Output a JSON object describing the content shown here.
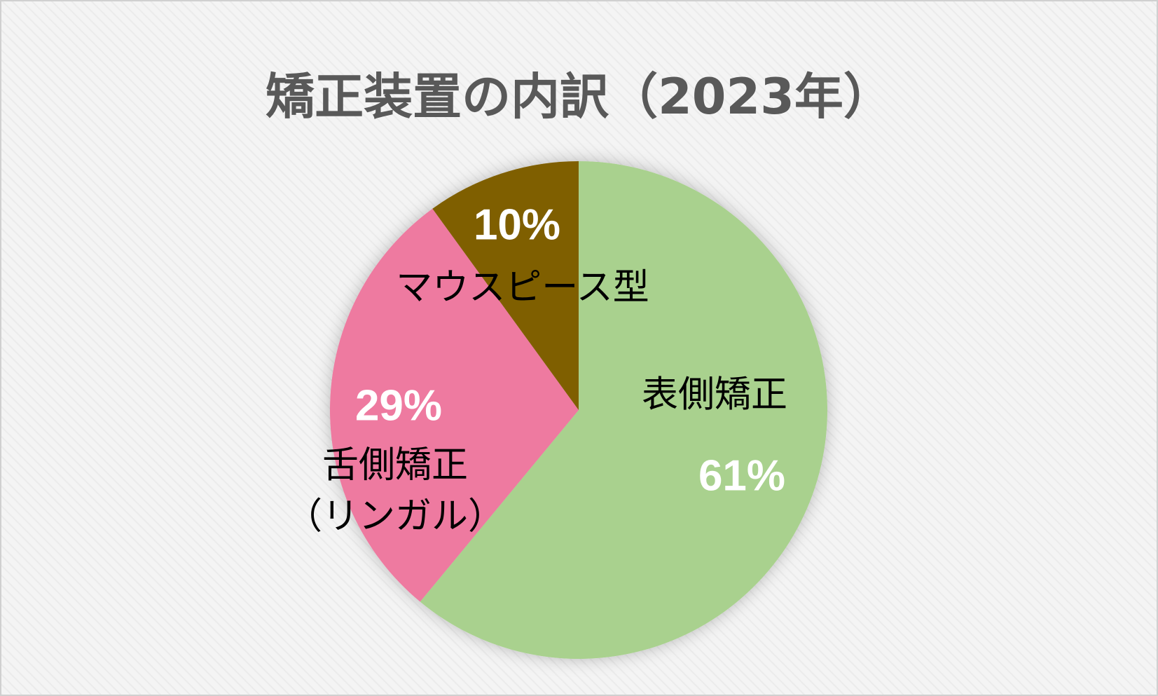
{
  "chart_data": {
    "type": "pie",
    "title": "矯正装置の内訳（2023年）",
    "categories": [
      "表側矯正",
      "舌側矯正\n（リンガル）",
      "マウスピース型"
    ],
    "values": [
      61,
      29,
      10
    ],
    "value_labels": [
      "61%",
      "29%",
      "10%"
    ],
    "colors": [
      "#a9d18e",
      "#ee7aa0",
      "#7f5f00"
    ]
  }
}
